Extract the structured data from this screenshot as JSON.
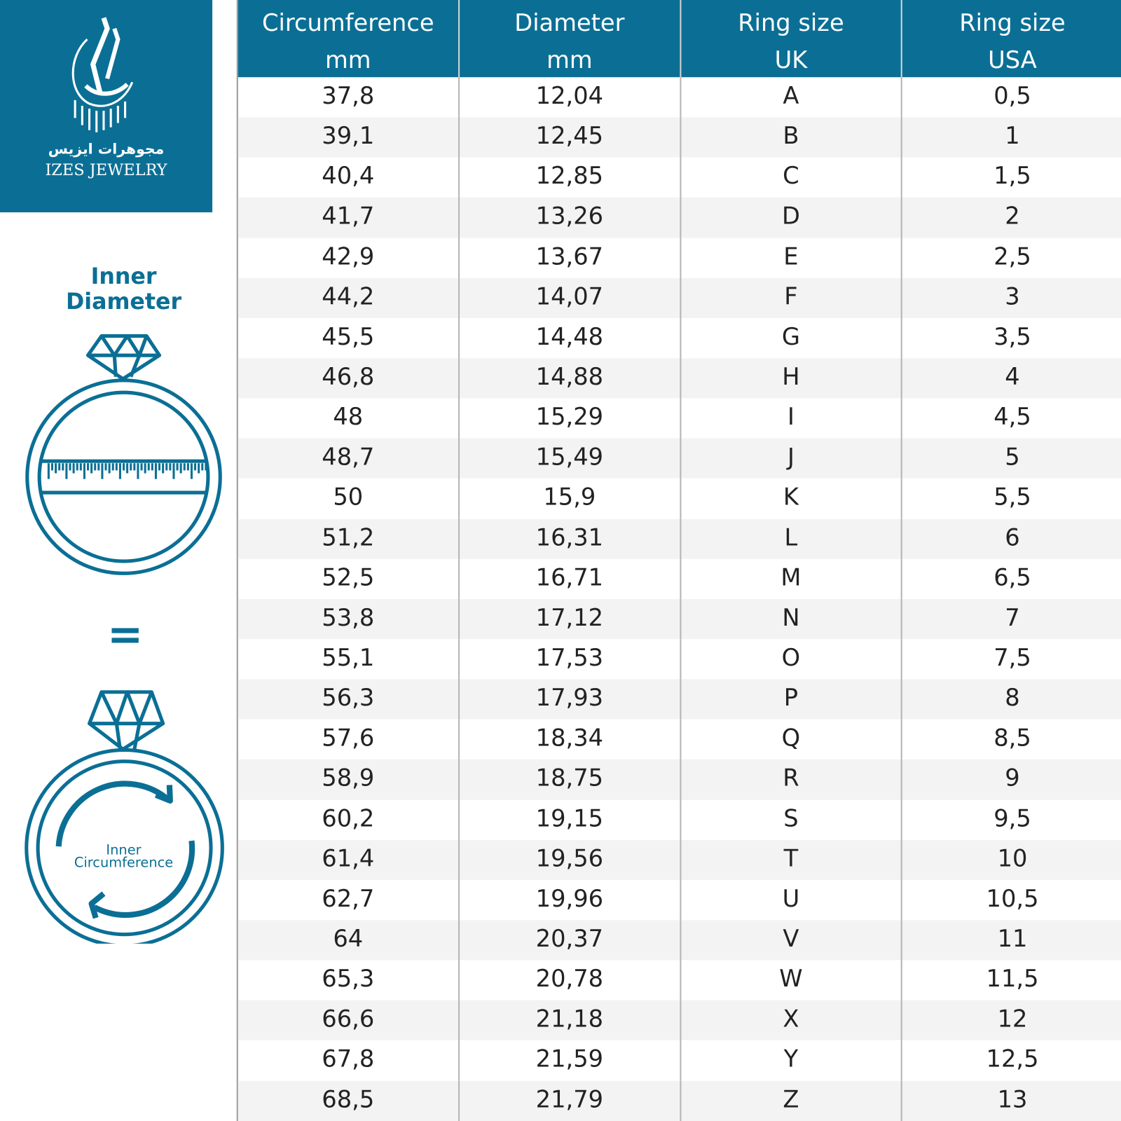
{
  "brand": {
    "name_ar": "مجوهرات ايزيس",
    "name_en": "IZES JEWELRY",
    "color": "#0b6f95"
  },
  "diagram": {
    "diameter_label": [
      "Inner",
      "Diameter"
    ],
    "equals": "=",
    "circumference_label": [
      "Inner",
      "Circumference"
    ]
  },
  "table": {
    "headers": [
      {
        "line1": "Circumference",
        "line2": "mm"
      },
      {
        "line1": "Diameter",
        "line2": "mm"
      },
      {
        "line1": "Ring size",
        "line2": "UK"
      },
      {
        "line1": "Ring size",
        "line2": "USA"
      }
    ],
    "rows": [
      [
        "37,8",
        "12,04",
        "A",
        "0,5"
      ],
      [
        "39,1",
        "12,45",
        "B",
        "1"
      ],
      [
        "40,4",
        "12,85",
        "C",
        "1,5"
      ],
      [
        "41,7",
        "13,26",
        "D",
        "2"
      ],
      [
        "42,9",
        "13,67",
        "E",
        "2,5"
      ],
      [
        "44,2",
        "14,07",
        "F",
        "3"
      ],
      [
        "45,5",
        "14,48",
        "G",
        "3,5"
      ],
      [
        "46,8",
        "14,88",
        "H",
        "4"
      ],
      [
        "48",
        "15,29",
        "I",
        "4,5"
      ],
      [
        "48,7",
        "15,49",
        "J",
        "5"
      ],
      [
        "50",
        "15,9",
        "K",
        "5,5"
      ],
      [
        "51,2",
        "16,31",
        "L",
        "6"
      ],
      [
        "52,5",
        "16,71",
        "M",
        "6,5"
      ],
      [
        "53,8",
        "17,12",
        "N",
        "7"
      ],
      [
        "55,1",
        "17,53",
        "O",
        "7,5"
      ],
      [
        "56,3",
        "17,93",
        "P",
        "8"
      ],
      [
        "57,6",
        "18,34",
        "Q",
        "8,5"
      ],
      [
        "58,9",
        "18,75",
        "R",
        "9"
      ],
      [
        "60,2",
        "19,15",
        "S",
        "9,5"
      ],
      [
        "61,4",
        "19,56",
        "T",
        "10"
      ],
      [
        "62,7",
        "19,96",
        "U",
        "10,5"
      ],
      [
        "64",
        "20,37",
        "V",
        "11"
      ],
      [
        "65,3",
        "20,78",
        "W",
        "11,5"
      ],
      [
        "66,6",
        "21,18",
        "X",
        "12"
      ],
      [
        "67,8",
        "21,59",
        "Y",
        "12,5"
      ],
      [
        "68,5",
        "21,79",
        "Z",
        "13"
      ]
    ]
  }
}
